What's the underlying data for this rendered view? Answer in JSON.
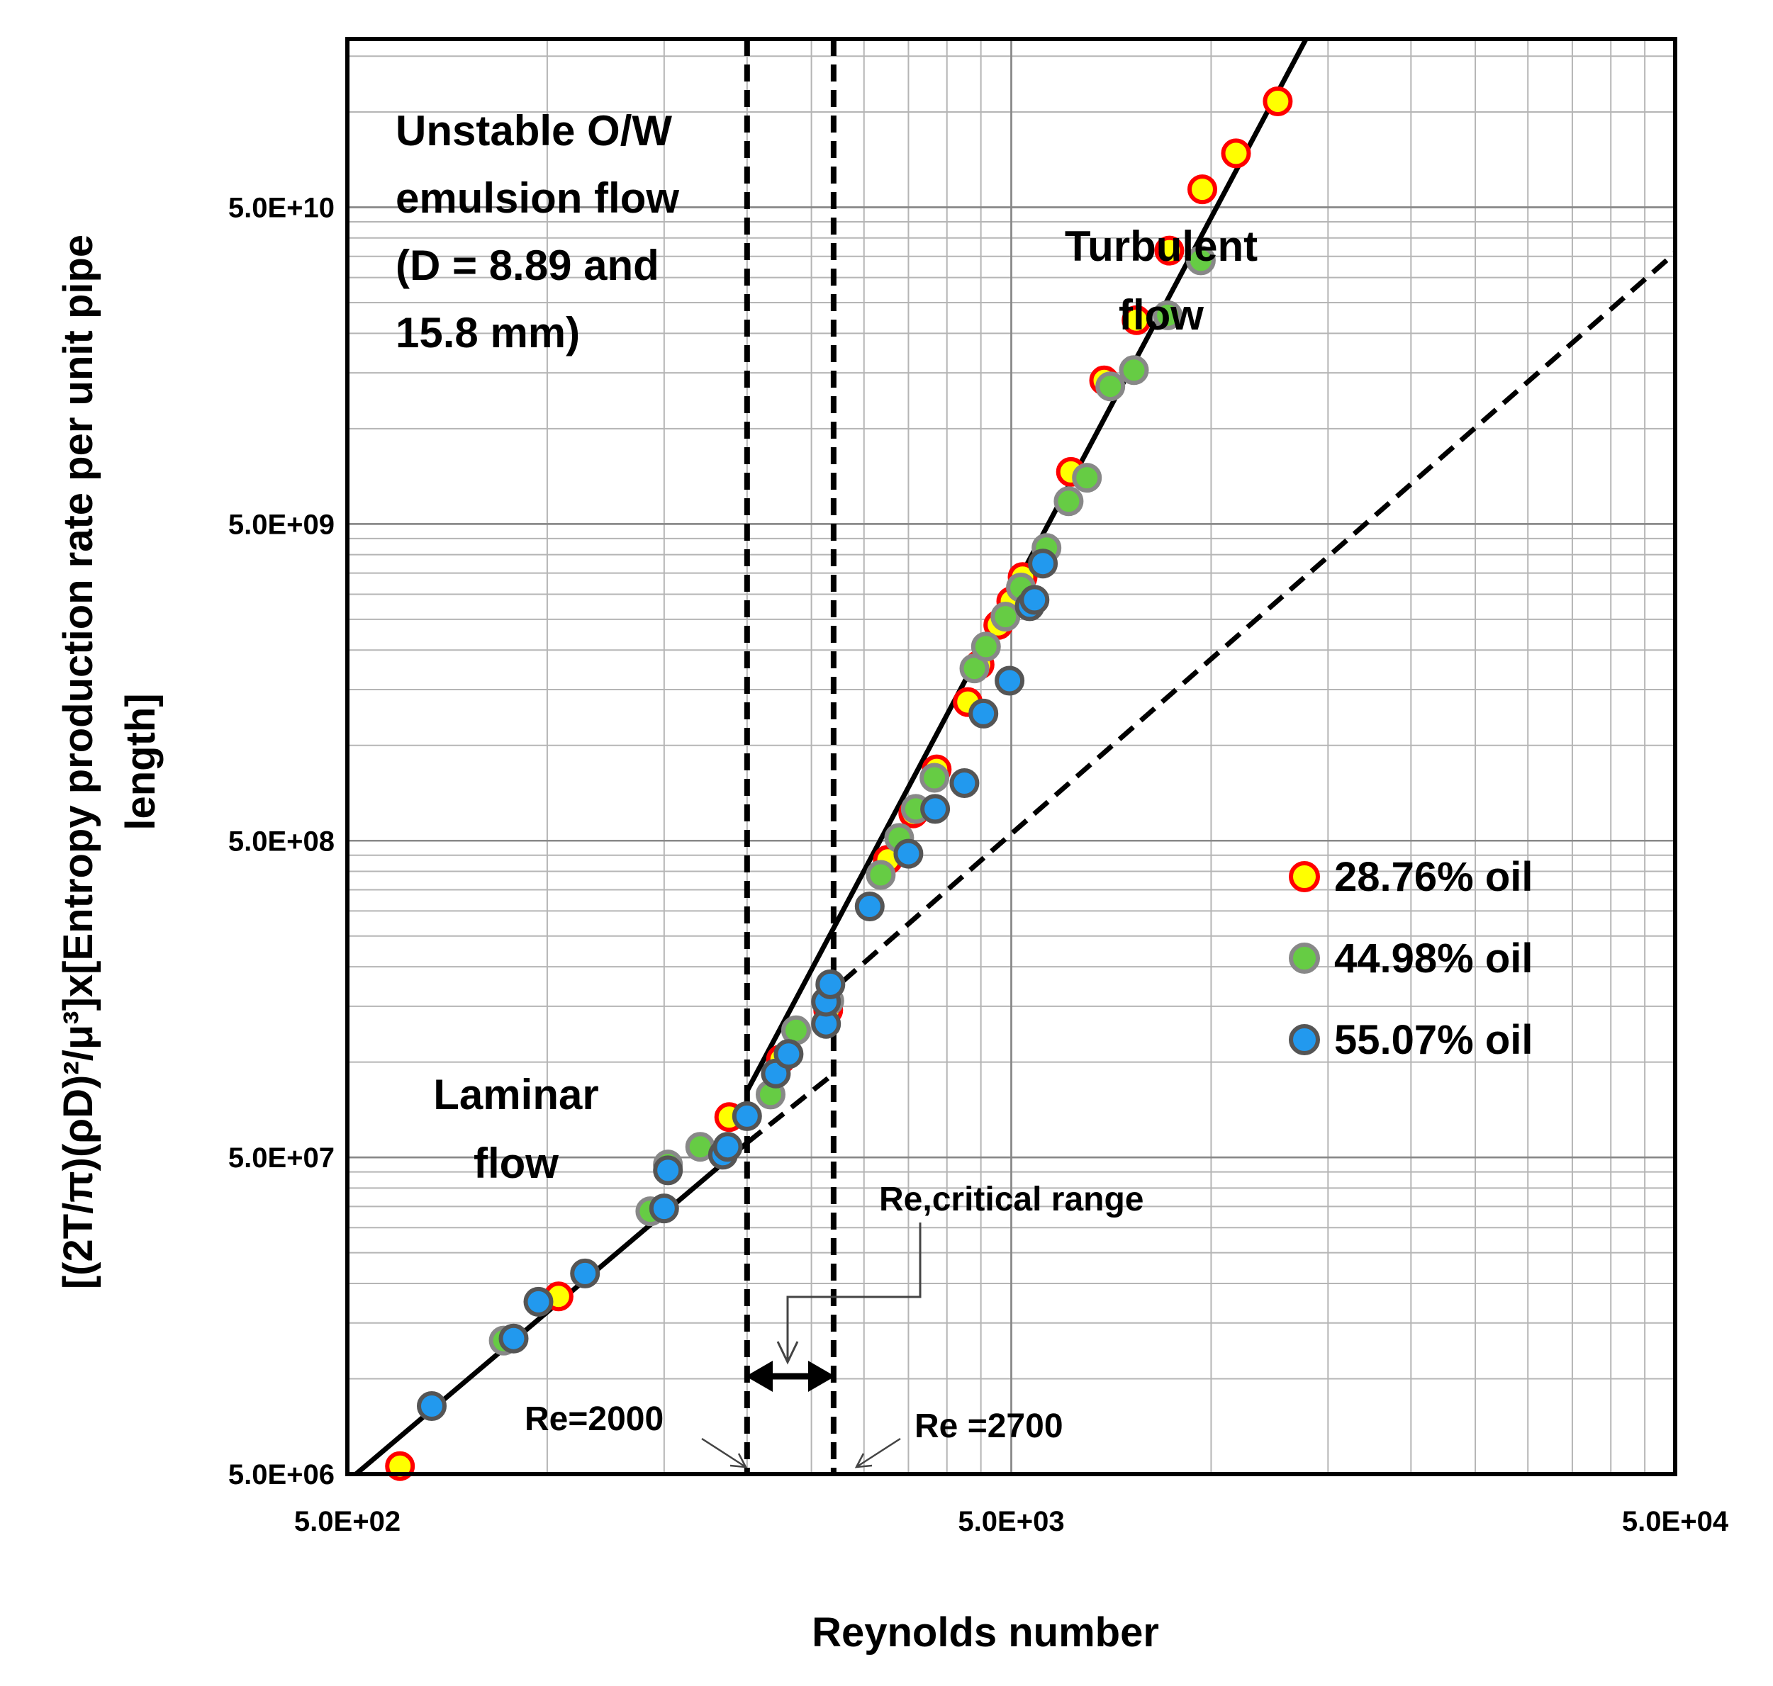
{
  "chart_data": {
    "type": "scatter",
    "title": "",
    "xlabel": "Reynolds number",
    "ylabel_line1": "[(2T/π)(ρD)²/μ³]x[Entropy production rate per unit pipe",
    "ylabel_line2": "length]",
    "xscale": "log",
    "yscale": "log",
    "xlim": [
      500,
      50000
    ],
    "ylim": [
      5000000,
      170000000000
    ],
    "x_ticks": [
      {
        "value": 500,
        "label": "5.0E+02"
      },
      {
        "value": 5000,
        "label": "5.0E+03"
      },
      {
        "value": 50000,
        "label": "5.0E+04"
      }
    ],
    "y_ticks": [
      {
        "value": 5000000,
        "label": "5.0E+06"
      },
      {
        "value": 50000000,
        "label": "5.0E+07"
      },
      {
        "value": 500000000,
        "label": "5.0E+08"
      },
      {
        "value": 5000000000,
        "label": "5.0E+09"
      },
      {
        "value": 50000000000,
        "label": "5.0E+10"
      }
    ],
    "grid": true,
    "legend_position": "right",
    "series": [
      {
        "name": "28.76% oil",
        "fill": "#ffff00",
        "stroke": "#ff0000",
        "points": [
          [
            600,
            5300000.0
          ],
          [
            1040,
            18200000.0
          ],
          [
            1880,
            67000000.0
          ],
          [
            2250,
            102000000.0
          ],
          [
            2650,
            146000000.0
          ],
          [
            3260,
            435000000.0
          ],
          [
            3560,
            610000000.0
          ],
          [
            3860,
            840000000.0
          ],
          [
            4300,
            1370000000.0
          ],
          [
            4480,
            1800000000.0
          ],
          [
            4780,
            2400000000.0
          ],
          [
            5000,
            2850000000.0
          ],
          [
            5200,
            3400000000.0
          ],
          [
            6150,
            7300000000.0
          ],
          [
            6900,
            14200000000.0
          ],
          [
            7720,
            22000000000.0
          ],
          [
            8650,
            36500000000.0
          ],
          [
            9700,
            57000000000.0
          ],
          [
            10900,
            74000000000.0
          ],
          [
            12600,
            108000000000.0
          ]
        ]
      },
      {
        "name": "44.98% oil",
        "fill": "#66cc44",
        "stroke": "#888888",
        "points": [
          [
            860,
            13200000.0
          ],
          [
            1430,
            33800000.0
          ],
          [
            1520,
            47500000.0
          ],
          [
            1700,
            54000000.0
          ],
          [
            2170,
            79000000.0
          ],
          [
            2370,
            126000000.0
          ],
          [
            2660,
            156000000.0
          ],
          [
            3180,
            390000000.0
          ],
          [
            3390,
            510000000.0
          ],
          [
            3590,
            630000000.0
          ],
          [
            3830,
            790000000.0
          ],
          [
            4400,
            1750000000.0
          ],
          [
            4580,
            2050000000.0
          ],
          [
            4900,
            2550000000.0
          ],
          [
            5170,
            3150000000.0
          ],
          [
            5650,
            4200000000.0
          ],
          [
            6100,
            5900000000.0
          ],
          [
            6500,
            7000000000.0
          ],
          [
            7050,
            13600000000.0
          ],
          [
            7650,
            15300000000.0
          ],
          [
            8600,
            22800000000.0
          ],
          [
            9650,
            34000000000.0
          ]
        ]
      },
      {
        "name": "55.07% oil",
        "fill": "#2299ee",
        "stroke": "#555555",
        "points": [
          [
            670,
            8200000.0
          ],
          [
            890,
            13400000.0
          ],
          [
            970,
            17500000.0
          ],
          [
            1140,
            21500000.0
          ],
          [
            1500,
            34500000.0
          ],
          [
            1520,
            45500000.0
          ],
          [
            1840,
            51000000.0
          ],
          [
            1870,
            54000000.0
          ],
          [
            2000,
            67500000.0
          ],
          [
            2210,
            92000000.0
          ],
          [
            2310,
            106000000.0
          ],
          [
            2630,
            132000000.0
          ],
          [
            2630,
            155000000.0
          ],
          [
            2670,
            176000000.0
          ],
          [
            3060,
            310000000.0
          ],
          [
            3500,
            455000000.0
          ],
          [
            3840,
            630000000.0
          ],
          [
            4250,
            760000000.0
          ],
          [
            4540,
            1260000000.0
          ],
          [
            4970,
            1600000000.0
          ],
          [
            5330,
            2750000000.0
          ],
          [
            5420,
            2880000000.0
          ],
          [
            5580,
            3750000000.0
          ]
        ]
      }
    ],
    "fit_lines": [
      {
        "name": "laminar-fit",
        "style": "solid",
        "points": [
          [
            515,
            5000000.0
          ],
          [
            2000,
            55600000.0
          ]
        ]
      },
      {
        "name": "laminar-extrapolation",
        "style": "dashed",
        "points": [
          [
            2000,
            55600000.0
          ],
          [
            2720,
            93000000.0
          ]
        ]
      },
      {
        "name": "laminar-extrapolation-upper",
        "style": "dashed",
        "points": [
          [
            2780,
            179000000.0
          ],
          [
            50000,
            35900000000.0
          ]
        ]
      },
      {
        "name": "turbulent-fit",
        "style": "solid",
        "points": [
          [
            2000,
            81000000.0
          ],
          [
            13900,
            170000000000.0
          ]
        ]
      }
    ],
    "vertical_lines": [
      {
        "value": 2000,
        "label": "Re=2000"
      },
      {
        "value": 2700,
        "label": "Re =2700"
      }
    ],
    "annotations": {
      "unstable_label": [
        "Unstable O/W",
        "emulsion flow",
        "(D = 8.89 and",
        "15.8 mm)"
      ],
      "turbulent_label": [
        "Turbulent",
        "flow"
      ],
      "laminar_label": [
        "Laminar",
        "flow"
      ],
      "critical_range_label": "Re,critical range"
    }
  }
}
